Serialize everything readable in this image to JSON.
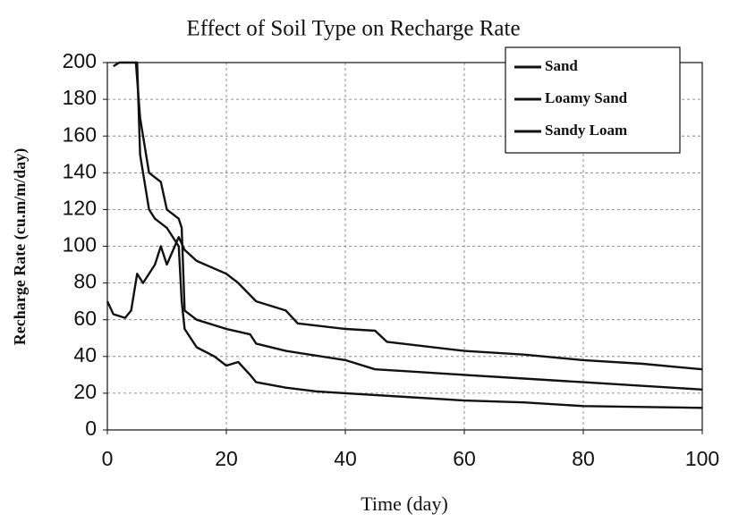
{
  "chart_data": {
    "type": "line",
    "title": "Effect of Soil Type on Recharge Rate",
    "x_label": "Time (day)",
    "y_label": "Recharge Rate (cu.m/m/day)",
    "xlim": [
      0,
      100
    ],
    "xticks": [
      0,
      20,
      40,
      60,
      80,
      100
    ],
    "ylim": [
      0,
      200
    ],
    "yticks": [
      0,
      20,
      40,
      60,
      80,
      100,
      120,
      140,
      160,
      180,
      200
    ],
    "grid": true,
    "legend": "upper right",
    "series": [
      {
        "name": "Sand",
        "color": "#111111",
        "x": [
          1,
          2,
          5,
          5.5,
          6,
          7,
          8,
          10,
          12,
          12.5,
          13,
          15,
          18,
          20,
          22,
          24,
          25,
          30,
          35,
          40,
          50,
          60,
          70,
          80,
          90,
          100
        ],
        "values": [
          198,
          200,
          200,
          150,
          140,
          120,
          115,
          110,
          100,
          70,
          55,
          45,
          40,
          35,
          37,
          30,
          26,
          23,
          21,
          20,
          18,
          16,
          15,
          13,
          12.5,
          12
        ]
      },
      {
        "name": "Loamy Sand",
        "color": "#111111",
        "x": [
          4.8,
          5.5,
          6,
          7,
          9,
          10,
          12,
          12.5,
          13,
          15,
          20,
          24,
          25,
          30,
          40,
          45,
          50,
          60,
          70,
          80,
          90,
          100
        ],
        "values": [
          200,
          170,
          160,
          140,
          135,
          120,
          115,
          110,
          65,
          60,
          55,
          52,
          47,
          43,
          38,
          33,
          32,
          30,
          28,
          26,
          24,
          22
        ]
      },
      {
        "name": "Sandy Loam",
        "color": "#111111",
        "x": [
          0,
          1,
          3,
          4,
          5,
          6,
          8,
          9,
          10,
          12,
          13,
          15,
          20,
          22,
          25,
          30,
          32,
          40,
          45,
          47,
          60,
          70,
          80,
          90,
          100
        ],
        "values": [
          70,
          63,
          61,
          65,
          85,
          80,
          90,
          100,
          90,
          105,
          98,
          92,
          85,
          80,
          70,
          65,
          58,
          55,
          54,
          48,
          43,
          41,
          38,
          36,
          33
        ]
      }
    ]
  }
}
